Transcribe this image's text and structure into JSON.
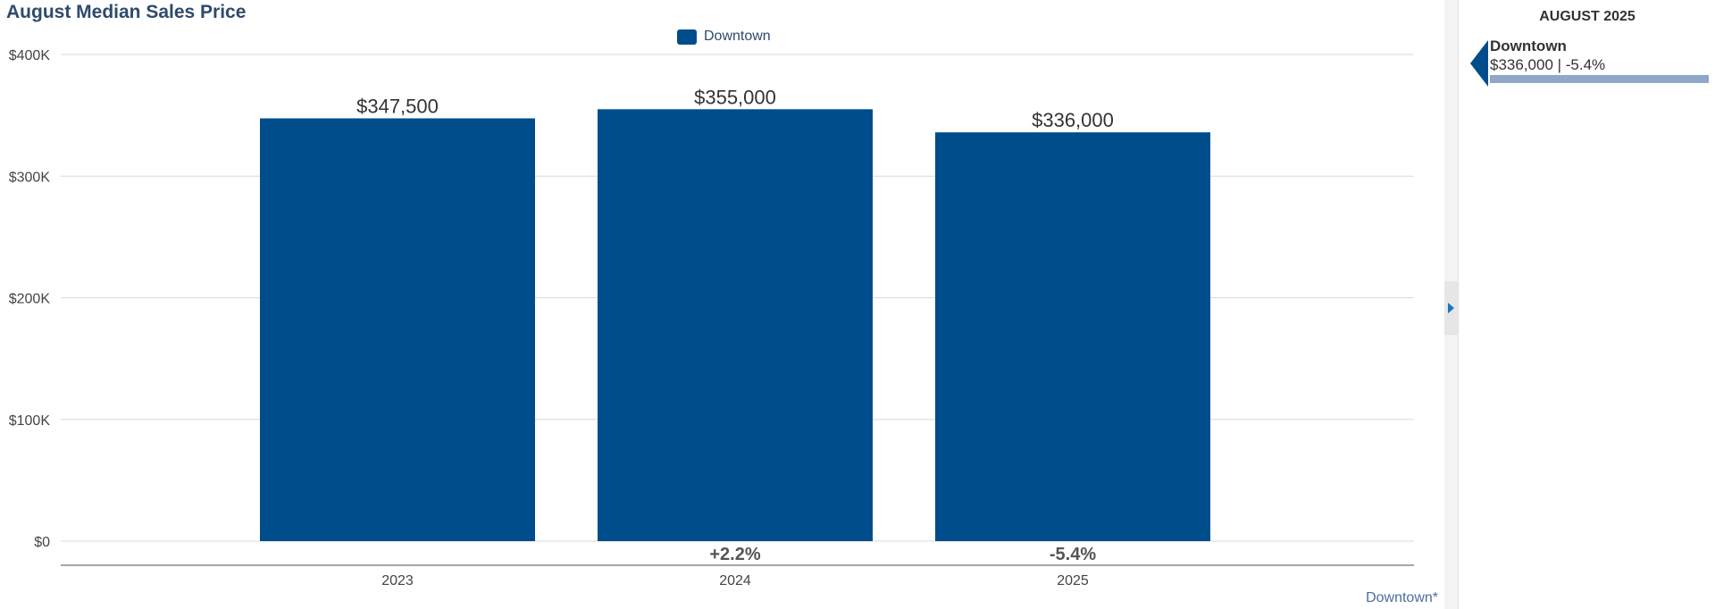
{
  "chart_data": {
    "type": "bar",
    "title": "August Median Sales Price",
    "categories": [
      "2023",
      "2024",
      "2025"
    ],
    "series": [
      {
        "name": "Downtown",
        "values": [
          347500,
          355000,
          336000
        ],
        "value_labels": [
          "$347,500",
          "$355,000",
          "$336,000"
        ],
        "color": "#004d8c"
      }
    ],
    "change_labels": [
      "",
      "+2.2%",
      "-5.4%"
    ],
    "yticks": [
      0,
      100000,
      200000,
      300000,
      400000
    ],
    "ytick_labels": [
      "$0",
      "$100K",
      "$200K",
      "$300K",
      "$400K"
    ],
    "ylim": [
      0,
      400000
    ],
    "xlabel": "",
    "ylabel": "",
    "grid": true,
    "legend": "top-center"
  },
  "footnote": "Downtown*",
  "side_panel": {
    "header": "AUGUST 2025",
    "item": {
      "name": "Downtown",
      "value": "$336,000 | -5.4%",
      "bar_color": "#8fa8c8",
      "pointer_color": "#004d8c"
    }
  }
}
